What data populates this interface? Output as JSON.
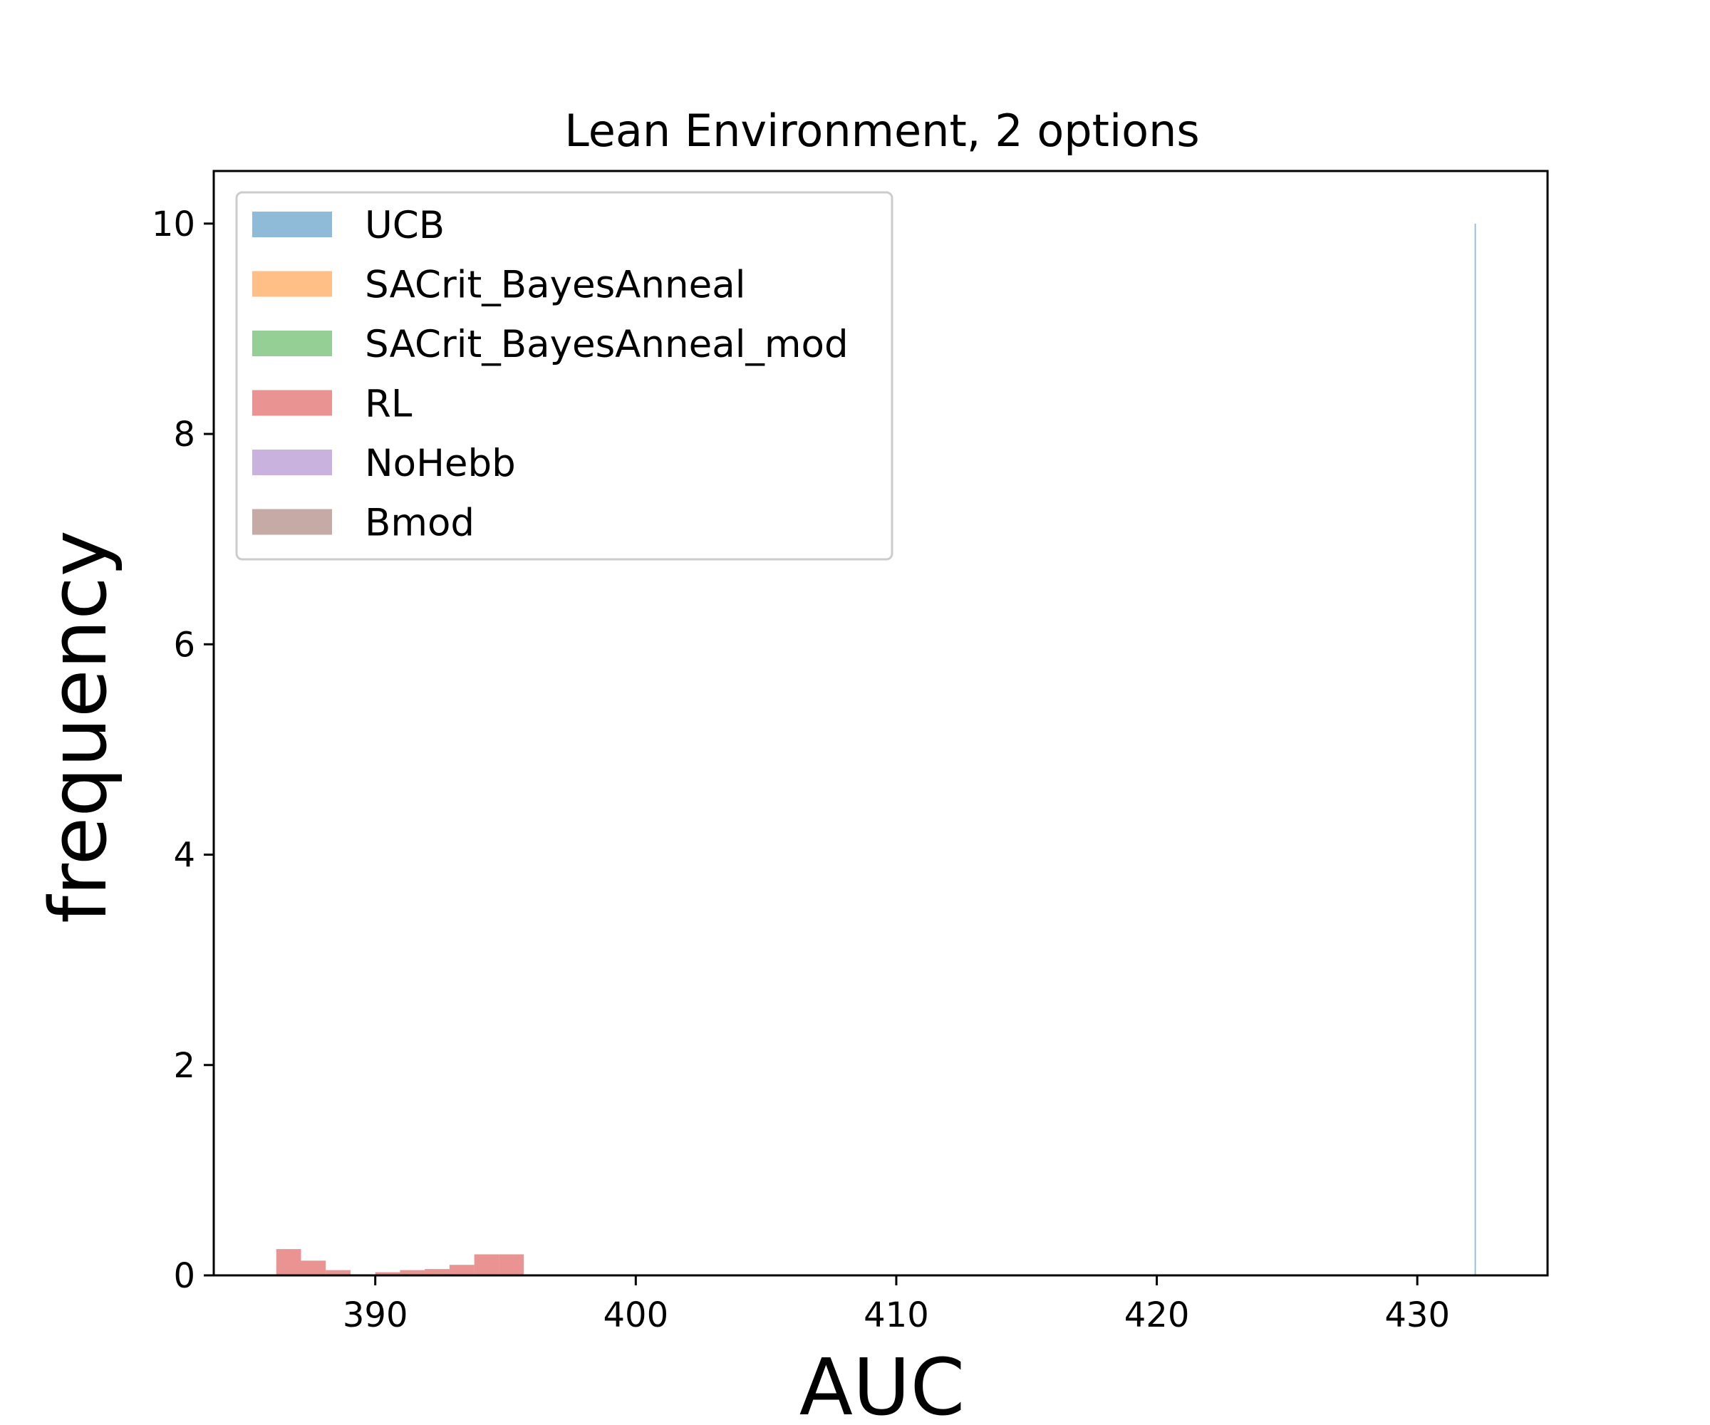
{
  "chart_data": {
    "type": "histogram",
    "title": "Lean Environment, 2 options",
    "xlabel": "AUC",
    "ylabel": "frequency",
    "xlim": [
      383.8,
      435.0
    ],
    "ylim": [
      0,
      10.5
    ],
    "xticks": [
      390,
      400,
      410,
      420,
      430
    ],
    "yticks": [
      0,
      2,
      4,
      6,
      8,
      10
    ],
    "grid": false,
    "legend_position": "upper-left",
    "bar_opacity": 0.5,
    "series": [
      {
        "name": "UCB",
        "color": "#1f77b4",
        "bins": [
          {
            "x0": 432.2,
            "x1": 432.25,
            "y": 10.0
          }
        ]
      },
      {
        "name": "SACrit_BayesAnneal",
        "color": "#ff7f0e",
        "bins": []
      },
      {
        "name": "SACrit_BayesAnneal_mod",
        "color": "#2ca02c",
        "bins": []
      },
      {
        "name": "RL",
        "color": "#d62728",
        "bins": [
          {
            "x0": 386.2,
            "x1": 387.15,
            "y": 0.25
          },
          {
            "x0": 387.15,
            "x1": 388.1,
            "y": 0.14
          },
          {
            "x0": 388.1,
            "x1": 389.05,
            "y": 0.05
          },
          {
            "x0": 389.05,
            "x1": 390.0,
            "y": 0.0
          },
          {
            "x0": 390.0,
            "x1": 390.95,
            "y": 0.03
          },
          {
            "x0": 390.95,
            "x1": 391.9,
            "y": 0.05
          },
          {
            "x0": 391.9,
            "x1": 392.85,
            "y": 0.06
          },
          {
            "x0": 392.85,
            "x1": 393.8,
            "y": 0.1
          },
          {
            "x0": 393.8,
            "x1": 394.75,
            "y": 0.2
          },
          {
            "x0": 394.75,
            "x1": 395.7,
            "y": 0.2
          }
        ]
      },
      {
        "name": "NoHebb",
        "color": "#9467bd",
        "bins": []
      },
      {
        "name": "Bmod",
        "color": "#8c564b",
        "bins": []
      }
    ]
  }
}
